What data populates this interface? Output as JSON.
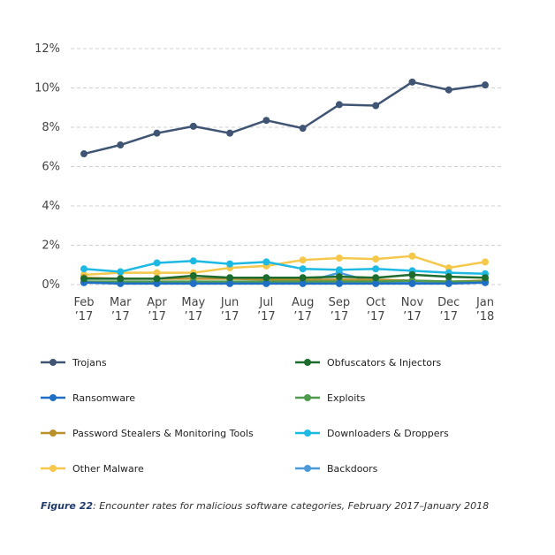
{
  "caption": {
    "label": "Figure 22",
    "text": ": Encounter rates for malicious software categories, February 2017–January 2018"
  },
  "chart_data": {
    "type": "line",
    "title": "",
    "xlabel": "",
    "ylabel": "",
    "ylim": [
      0,
      12
    ],
    "y_ticks": [
      "0%",
      "2%",
      "4%",
      "6%",
      "8%",
      "10%",
      "12%"
    ],
    "y_tick_values": [
      0,
      2,
      4,
      6,
      8,
      10,
      12
    ],
    "grid": "horizontal dashed",
    "legend_position": "bottom",
    "categories": [
      [
        "Feb",
        "’17"
      ],
      [
        "Mar",
        "’17"
      ],
      [
        "Apr",
        "’17"
      ],
      [
        "May",
        "’17"
      ],
      [
        "Jun",
        "’17"
      ],
      [
        "Jul",
        "’17"
      ],
      [
        "Aug",
        "’17"
      ],
      [
        "Sep",
        "’17"
      ],
      [
        "Oct",
        "’17"
      ],
      [
        "Nov",
        "’17"
      ],
      [
        "Dec",
        "’17"
      ],
      [
        "Jan",
        "’18"
      ]
    ],
    "series": [
      {
        "name": "Trojans",
        "color": "#3f5573",
        "values": [
          6.65,
          7.1,
          7.7,
          8.05,
          7.7,
          8.35,
          7.95,
          9.15,
          9.1,
          10.3,
          9.9,
          10.15
        ]
      },
      {
        "name": "Obfuscators & Injectors",
        "color": "#1e6b2e",
        "values": [
          0.3,
          0.3,
          0.3,
          0.45,
          0.35,
          0.35,
          0.35,
          0.4,
          0.35,
          0.5,
          0.4,
          0.35
        ]
      },
      {
        "name": "Ransomware",
        "color": "#1f6fc4",
        "values": [
          0.1,
          0.05,
          0.05,
          0.05,
          0.05,
          0.05,
          0.05,
          0.05,
          0.05,
          0.05,
          0.05,
          0.1
        ]
      },
      {
        "name": "Exploits",
        "color": "#4e9a4e",
        "values": [
          0.15,
          0.15,
          0.15,
          0.15,
          0.15,
          0.15,
          0.15,
          0.15,
          0.15,
          0.2,
          0.15,
          0.15
        ]
      },
      {
        "name": "Password Stealers & Monitoring Tools",
        "color": "#b8912c",
        "values": [
          0.35,
          0.3,
          0.3,
          0.3,
          0.3,
          0.25,
          0.25,
          0.25,
          0.25,
          0.2,
          0.15,
          0.2
        ]
      },
      {
        "name": "Downloaders & Droppers",
        "color": "#1db9e3",
        "values": [
          0.8,
          0.65,
          1.1,
          1.2,
          1.05,
          1.15,
          0.8,
          0.75,
          0.8,
          0.7,
          0.6,
          0.55
        ]
      },
      {
        "name": "Other Malware",
        "color": "#f5c84c",
        "values": [
          0.5,
          0.6,
          0.6,
          0.6,
          0.85,
          0.95,
          1.25,
          1.35,
          1.3,
          1.45,
          0.85,
          1.15
        ]
      },
      {
        "name": "Backdoors",
        "color": "#4a9ad8",
        "values": [
          0.1,
          0.1,
          0.1,
          0.1,
          0.1,
          0.1,
          0.1,
          0.6,
          0.1,
          0.1,
          0.1,
          0.15
        ]
      }
    ]
  }
}
